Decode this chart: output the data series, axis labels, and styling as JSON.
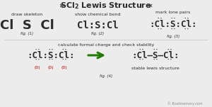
{
  "bg_color": "#ececec",
  "dark_color": "#2b2b2b",
  "green_color": "#1e7a00",
  "red_color": "#cc0000",
  "gray_color": "#888888",
  "title": "SCl",
  "title_sub": "2",
  "title_suffix": " Lewis Structure",
  "chev_left": "»",
  "chev_right": "«",
  "fig1_label": "draw skeleton",
  "fig1_text": "Cl  S  Cl",
  "fig1_cap": "fig. (1)",
  "fig2_label": "show chemical bond",
  "fig2_text": "Cl:S:Cl",
  "fig2_cap": "fig. (2)",
  "fig3_label": "mark lone pairs",
  "fig3_text": ":Cl:S:Cl:",
  "fig3_cap": "fig. (3)",
  "fig4_label": "calculate formal charge and check stability",
  "fig4_left": ":Cl:S:Cl:",
  "fig4_right": ":Cl–S–Cl:",
  "fig4_stable": "stable lewis structure",
  "fig4_cap": "fig. (4)",
  "fig4_charges": [
    "(0)",
    "(0)",
    "(0)"
  ],
  "copyright": "© Rootmemory.com"
}
